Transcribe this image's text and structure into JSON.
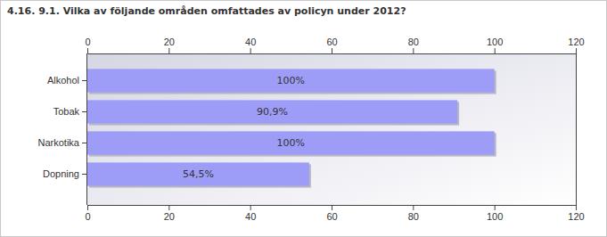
{
  "chart_data": {
    "type": "bar",
    "orientation": "horizontal",
    "title": "4.16. 9.1. Vilka av följande områden omfattades av policyn under 2012?",
    "categories": [
      "Alkohol",
      "Tobak",
      "Narkotika",
      "Dopning"
    ],
    "values": [
      100,
      90.9,
      100,
      54.5
    ],
    "value_labels": [
      "100%",
      "90,9%",
      "100%",
      "54,5%"
    ],
    "data_labels": true,
    "color": "#9d9df7",
    "xlim": [
      0,
      120
    ],
    "xticks": [
      0,
      20,
      40,
      60,
      80,
      100,
      120
    ],
    "grid": false
  }
}
